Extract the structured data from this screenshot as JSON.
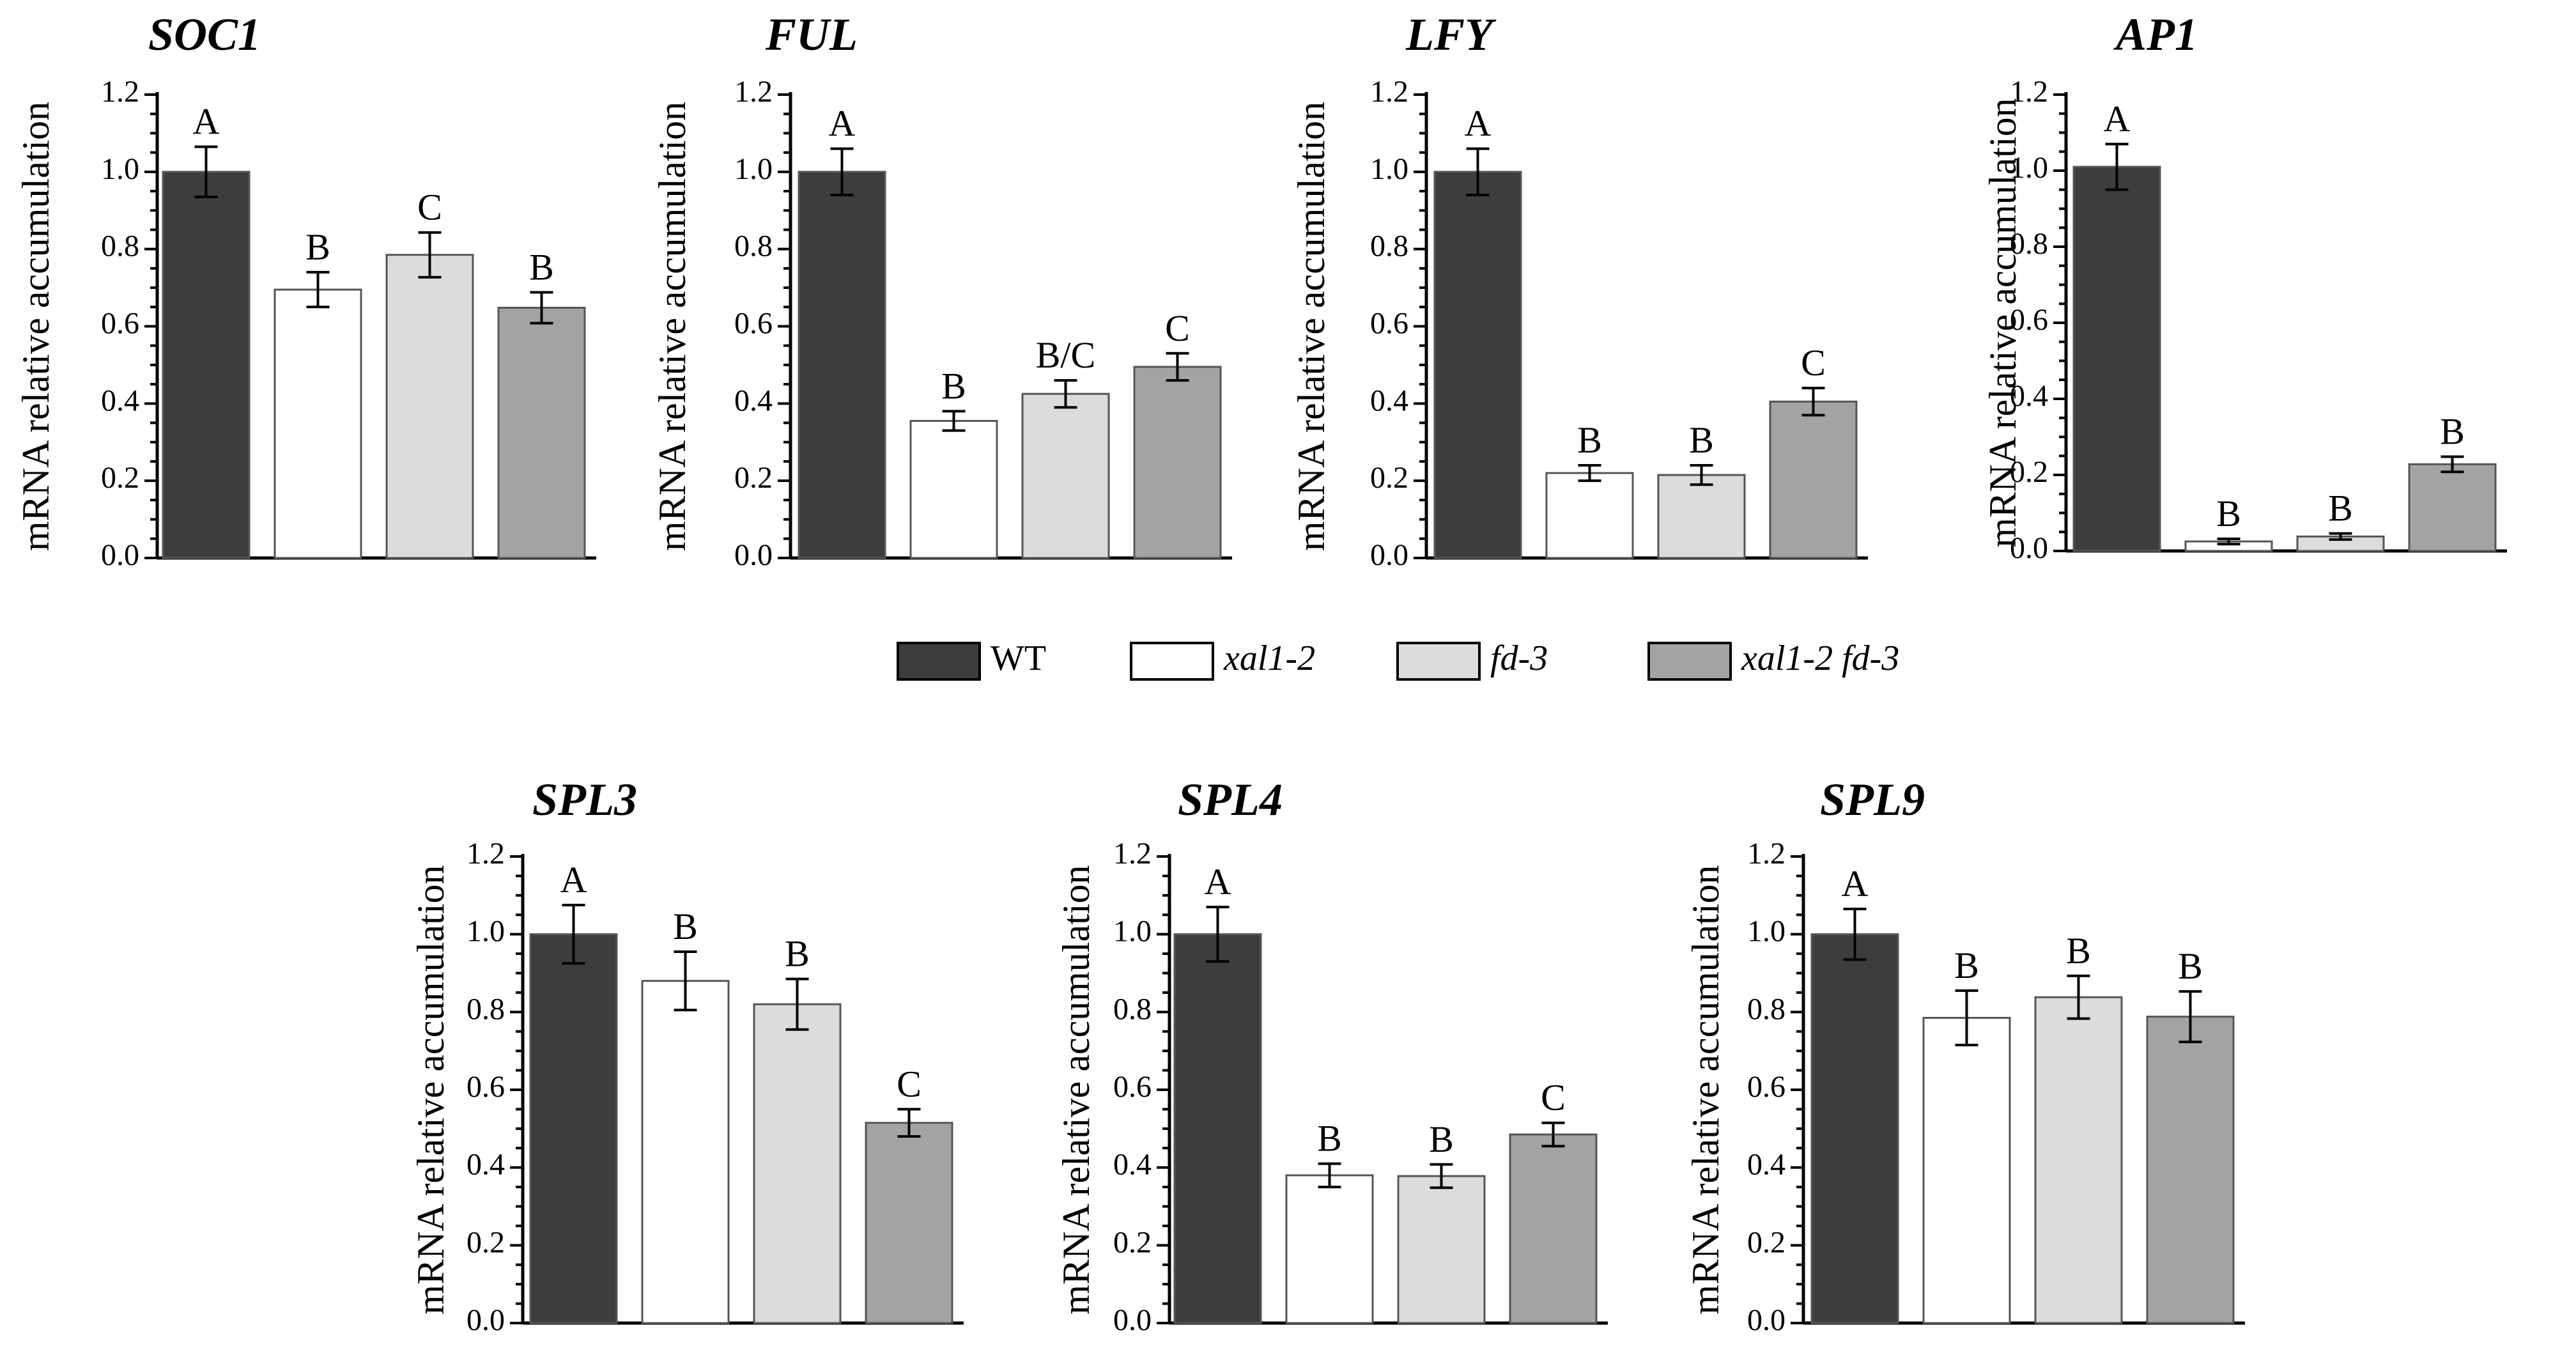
{
  "figure": {
    "legend": [
      {
        "label": "WT",
        "color": "#3d3d3d",
        "italic": false
      },
      {
        "label": "xal1-2",
        "color": "#ffffff",
        "italic": true
      },
      {
        "label": "fd-3",
        "color": "#dcdcdc",
        "italic": true
      },
      {
        "label": "xal1-2 fd-3",
        "color": "#a3a3a3",
        "italic": true
      }
    ]
  },
  "chart_data": [
    {
      "type": "bar",
      "title": "SOC1",
      "ylabel": "mRNA relative accumulation",
      "ylim": [
        0,
        1.2
      ],
      "yticks": [
        "0.0",
        "0.2",
        "0.4",
        "0.6",
        "0.8",
        "1.0",
        "1.2"
      ],
      "categories": [
        "WT",
        "xal1-2",
        "fd-3",
        "xal1-2 fd-3"
      ],
      "values": [
        1.0,
        0.695,
        0.785,
        0.648
      ],
      "errors": [
        0.065,
        0.045,
        0.058,
        0.04
      ],
      "significance": [
        "A",
        "B",
        "C",
        "B"
      ]
    },
    {
      "type": "bar",
      "title": "FUL",
      "ylabel": "mRNA relative accumulation",
      "ylim": [
        0,
        1.2
      ],
      "yticks": [
        "0.0",
        "0.2",
        "0.4",
        "0.6",
        "0.8",
        "1.0",
        "1.2"
      ],
      "categories": [
        "WT",
        "xal1-2",
        "fd-3",
        "xal1-2 fd-3"
      ],
      "values": [
        1.0,
        0.355,
        0.425,
        0.495
      ],
      "errors": [
        0.06,
        0.025,
        0.035,
        0.035
      ],
      "significance": [
        "A",
        "B",
        "B/C",
        "C"
      ]
    },
    {
      "type": "bar",
      "title": "LFY",
      "ylabel": "mRNA relative accumulation",
      "ylim": [
        0,
        1.2
      ],
      "yticks": [
        "0.0",
        "0.2",
        "0.4",
        "0.6",
        "0.8",
        "1.0",
        "1.2"
      ],
      "categories": [
        "WT",
        "xal1-2",
        "fd-3",
        "xal1-2 fd-3"
      ],
      "values": [
        1.0,
        0.22,
        0.215,
        0.405
      ],
      "errors": [
        0.06,
        0.02,
        0.025,
        0.035
      ],
      "significance": [
        "A",
        "B",
        "B",
        "C"
      ]
    },
    {
      "type": "bar",
      "title": "AP1",
      "ylabel": "mRNA relative accumulation",
      "ylim": [
        0,
        1.2
      ],
      "yticks": [
        "0.0",
        "0.2",
        "0.4",
        "0.6",
        "0.8",
        "1.0",
        "1.2"
      ],
      "categories": [
        "WT",
        "xal1-2",
        "fd-3",
        "xal1-2 fd-3"
      ],
      "values": [
        1.01,
        0.025,
        0.038,
        0.228
      ],
      "errors": [
        0.06,
        0.007,
        0.008,
        0.02
      ],
      "significance": [
        "A",
        "B",
        "B",
        "B"
      ]
    },
    {
      "type": "bar",
      "title": "SPL3",
      "ylabel": "mRNA relative accumulation",
      "ylim": [
        0,
        1.2
      ],
      "yticks": [
        "0.0",
        "0.2",
        "0.4",
        "0.6",
        "0.8",
        "1.0",
        "1.2"
      ],
      "categories": [
        "WT",
        "xal1-2",
        "fd-3",
        "xal1-2 fd-3"
      ],
      "values": [
        1.0,
        0.88,
        0.82,
        0.515
      ],
      "errors": [
        0.075,
        0.075,
        0.065,
        0.035
      ],
      "significance": [
        "A",
        "B",
        "B",
        "C"
      ]
    },
    {
      "type": "bar",
      "title": "SPL4",
      "ylabel": "mRNA relative accumulation",
      "ylim": [
        0,
        1.2
      ],
      "yticks": [
        "0.0",
        "0.2",
        "0.4",
        "0.6",
        "0.8",
        "1.0",
        "1.2"
      ],
      "categories": [
        "WT",
        "xal1-2",
        "fd-3",
        "xal1-2 fd-3"
      ],
      "values": [
        1.0,
        0.38,
        0.378,
        0.485
      ],
      "errors": [
        0.07,
        0.03,
        0.03,
        0.03
      ],
      "significance": [
        "A",
        "B",
        "B",
        "C"
      ]
    },
    {
      "type": "bar",
      "title": "SPL9",
      "ylabel": "mRNA relative accumulation",
      "ylim": [
        0,
        1.2
      ],
      "yticks": [
        "0.0",
        "0.2",
        "0.4",
        "0.6",
        "0.8",
        "1.0",
        "1.2"
      ],
      "categories": [
        "WT",
        "xal1-2",
        "fd-3",
        "xal1-2 fd-3"
      ],
      "values": [
        1.0,
        0.785,
        0.838,
        0.788
      ],
      "errors": [
        0.065,
        0.07,
        0.055,
        0.065
      ],
      "significance": [
        "A",
        "B",
        "B",
        "B"
      ]
    }
  ]
}
